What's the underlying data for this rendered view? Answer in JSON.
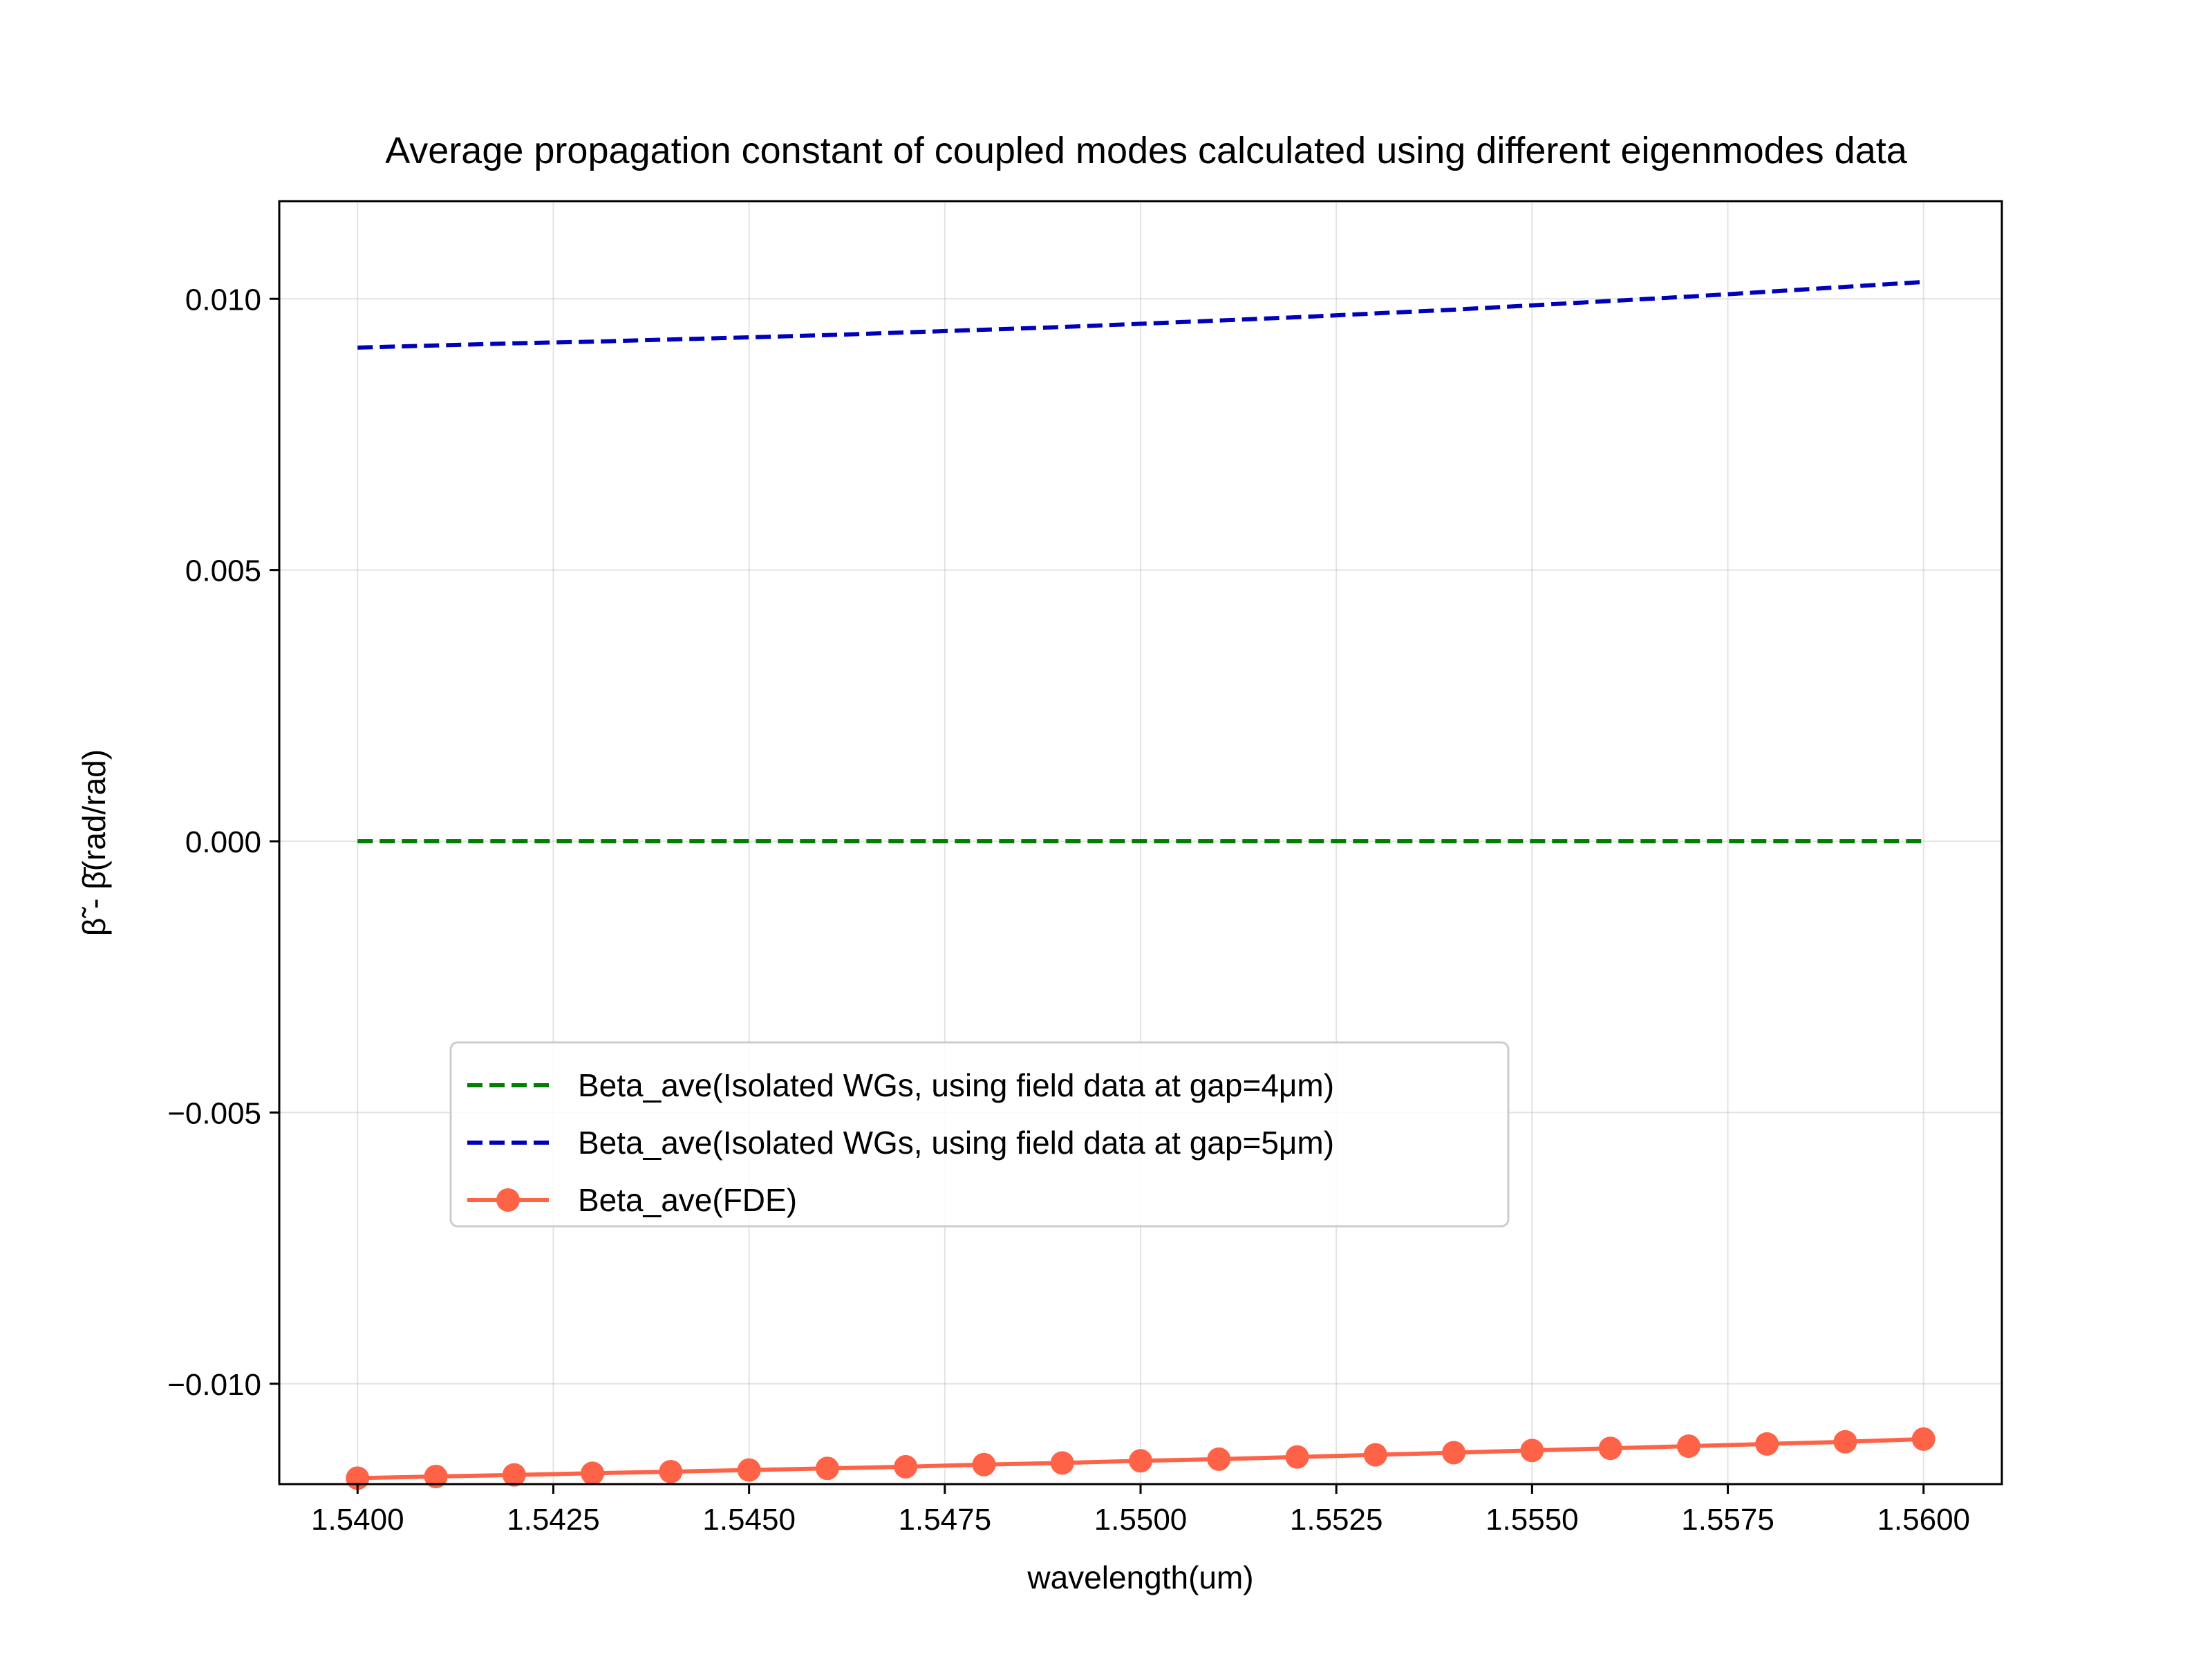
{
  "chart_data": {
    "type": "line",
    "title": "Average propagation constant of coupled modes calculated using different eigenmodes data",
    "xlabel": "wavelength(um)",
    "ylabel": "β̃ - β̄(rad/rad)",
    "xlim": [
      1.539,
      1.561
    ],
    "ylim": [
      -0.01185,
      0.0118
    ],
    "xticks": [
      1.54,
      1.5425,
      1.545,
      1.5475,
      1.55,
      1.5525,
      1.555,
      1.5575,
      1.56
    ],
    "xtick_labels": [
      "1.5400",
      "1.5425",
      "1.5450",
      "1.5475",
      "1.5500",
      "1.5525",
      "1.5550",
      "1.5575",
      "1.5600"
    ],
    "yticks": [
      -0.01,
      -0.005,
      0.0,
      0.005,
      0.01
    ],
    "ytick_labels": [
      "−0.010",
      "−0.005",
      "0.000",
      "0.005",
      "0.010"
    ],
    "grid": true,
    "legend_position": "lower-left",
    "x": [
      1.54,
      1.541,
      1.542,
      1.543,
      1.544,
      1.545,
      1.546,
      1.547,
      1.548,
      1.549,
      1.55,
      1.551,
      1.552,
      1.553,
      1.554,
      1.555,
      1.556,
      1.557,
      1.558,
      1.559,
      1.56
    ],
    "series": [
      {
        "name": "Beta_ave(Isolated WGs, using field data at gap=4μm)",
        "color": "#008000",
        "style": "dashed",
        "marker": "none",
        "values": [
          0,
          0,
          0,
          0,
          0,
          0,
          0,
          0,
          0,
          0,
          0,
          0,
          0,
          0,
          0,
          0,
          0,
          0,
          0,
          0,
          0
        ]
      },
      {
        "name": "Beta_ave(Isolated WGs, using field data at gap=5μm)",
        "color": "#0000bb",
        "style": "dashed",
        "marker": "none",
        "values": [
          0.0091,
          0.00914,
          0.00918,
          0.00921,
          0.00925,
          0.00929,
          0.00933,
          0.00938,
          0.00943,
          0.00948,
          0.00954,
          0.0096,
          0.00966,
          0.00973,
          0.0098,
          0.00988,
          0.00996,
          0.01004,
          0.01013,
          0.01022,
          0.01031
        ]
      },
      {
        "name": "Beta_ave(FDE)",
        "color": "#ff6347",
        "style": "solid",
        "marker": "circle",
        "values": [
          -0.01174,
          -0.01171,
          -0.01168,
          -0.01165,
          -0.01162,
          -0.01159,
          -0.01156,
          -0.01153,
          -0.01149,
          -0.01146,
          -0.01142,
          -0.01139,
          -0.01135,
          -0.01131,
          -0.01127,
          -0.01123,
          -0.01119,
          -0.01115,
          -0.01111,
          -0.01107,
          -0.01102
        ]
      }
    ]
  }
}
